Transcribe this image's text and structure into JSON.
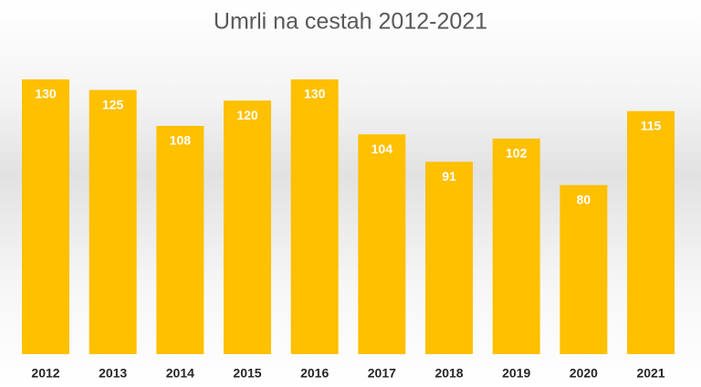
{
  "chart_data": {
    "type": "bar",
    "title": "Umrli na cestah 2012-2021",
    "categories": [
      "2012",
      "2013",
      "2014",
      "2015",
      "2016",
      "2017",
      "2018",
      "2019",
      "2020",
      "2021"
    ],
    "values": [
      130,
      125,
      108,
      120,
      130,
      104,
      91,
      102,
      80,
      115
    ],
    "color": "#ffc000"
  }
}
